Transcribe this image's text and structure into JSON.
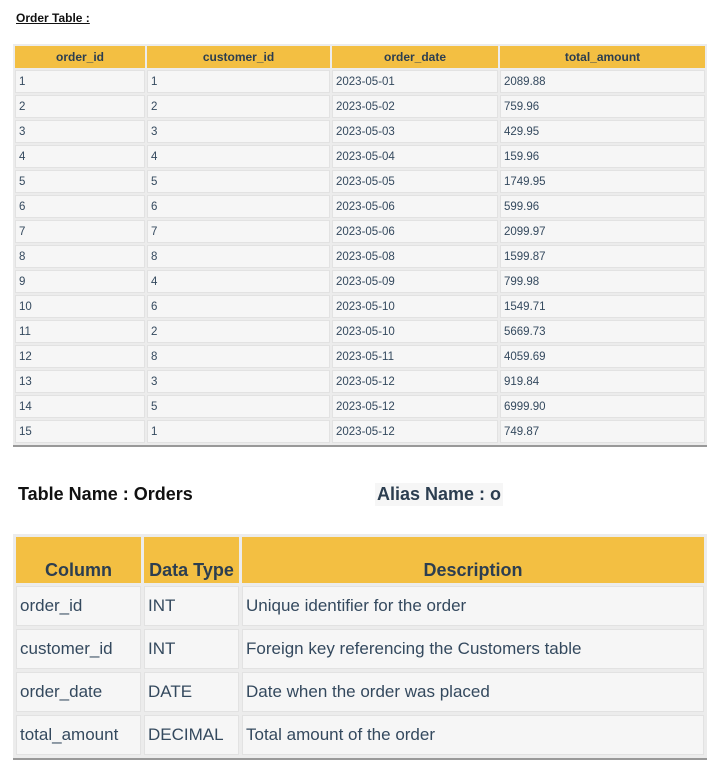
{
  "order_table": {
    "title": "Order Table :",
    "headers": [
      "order_id",
      "customer_id",
      "order_date",
      "total_amount"
    ],
    "rows": [
      [
        "1",
        "1",
        "2023-05-01",
        "2089.88"
      ],
      [
        "2",
        "2",
        "2023-05-02",
        "759.96"
      ],
      [
        "3",
        "3",
        "2023-05-03",
        "429.95"
      ],
      [
        "4",
        "4",
        "2023-05-04",
        "159.96"
      ],
      [
        "5",
        "5",
        "2023-05-05",
        "1749.95"
      ],
      [
        "6",
        "6",
        "2023-05-06",
        "599.96"
      ],
      [
        "7",
        "7",
        "2023-05-06",
        "2099.97"
      ],
      [
        "8",
        "8",
        "2023-05-08",
        "1599.87"
      ],
      [
        "9",
        "4",
        "2023-05-09",
        "799.98"
      ],
      [
        "10",
        "6",
        "2023-05-10",
        "1549.71"
      ],
      [
        "11",
        "2",
        "2023-05-10",
        "5669.73"
      ],
      [
        "12",
        "8",
        "2023-05-11",
        "4059.69"
      ],
      [
        "13",
        "3",
        "2023-05-12",
        "919.84"
      ],
      [
        "14",
        "5",
        "2023-05-12",
        "6999.90"
      ],
      [
        "15",
        "1",
        "2023-05-12",
        "749.87"
      ]
    ]
  },
  "schema": {
    "table_name": "Table Name : Orders",
    "alias_name": "Alias Name : o",
    "headers": [
      "Column",
      "Data Type",
      "Description"
    ],
    "rows": [
      [
        "order_id",
        "INT",
        "Unique identifier for the order"
      ],
      [
        "customer_id",
        "INT",
        "Foreign key referencing the Customers table"
      ],
      [
        "order_date",
        "DATE",
        "Date when the order was placed"
      ],
      [
        "total_amount",
        "DECIMAL",
        "Total amount of the order"
      ]
    ]
  },
  "colors": {
    "header_bg": "#f3bf42",
    "cell_bg": "#f6f6f6",
    "text": "#34495e"
  }
}
